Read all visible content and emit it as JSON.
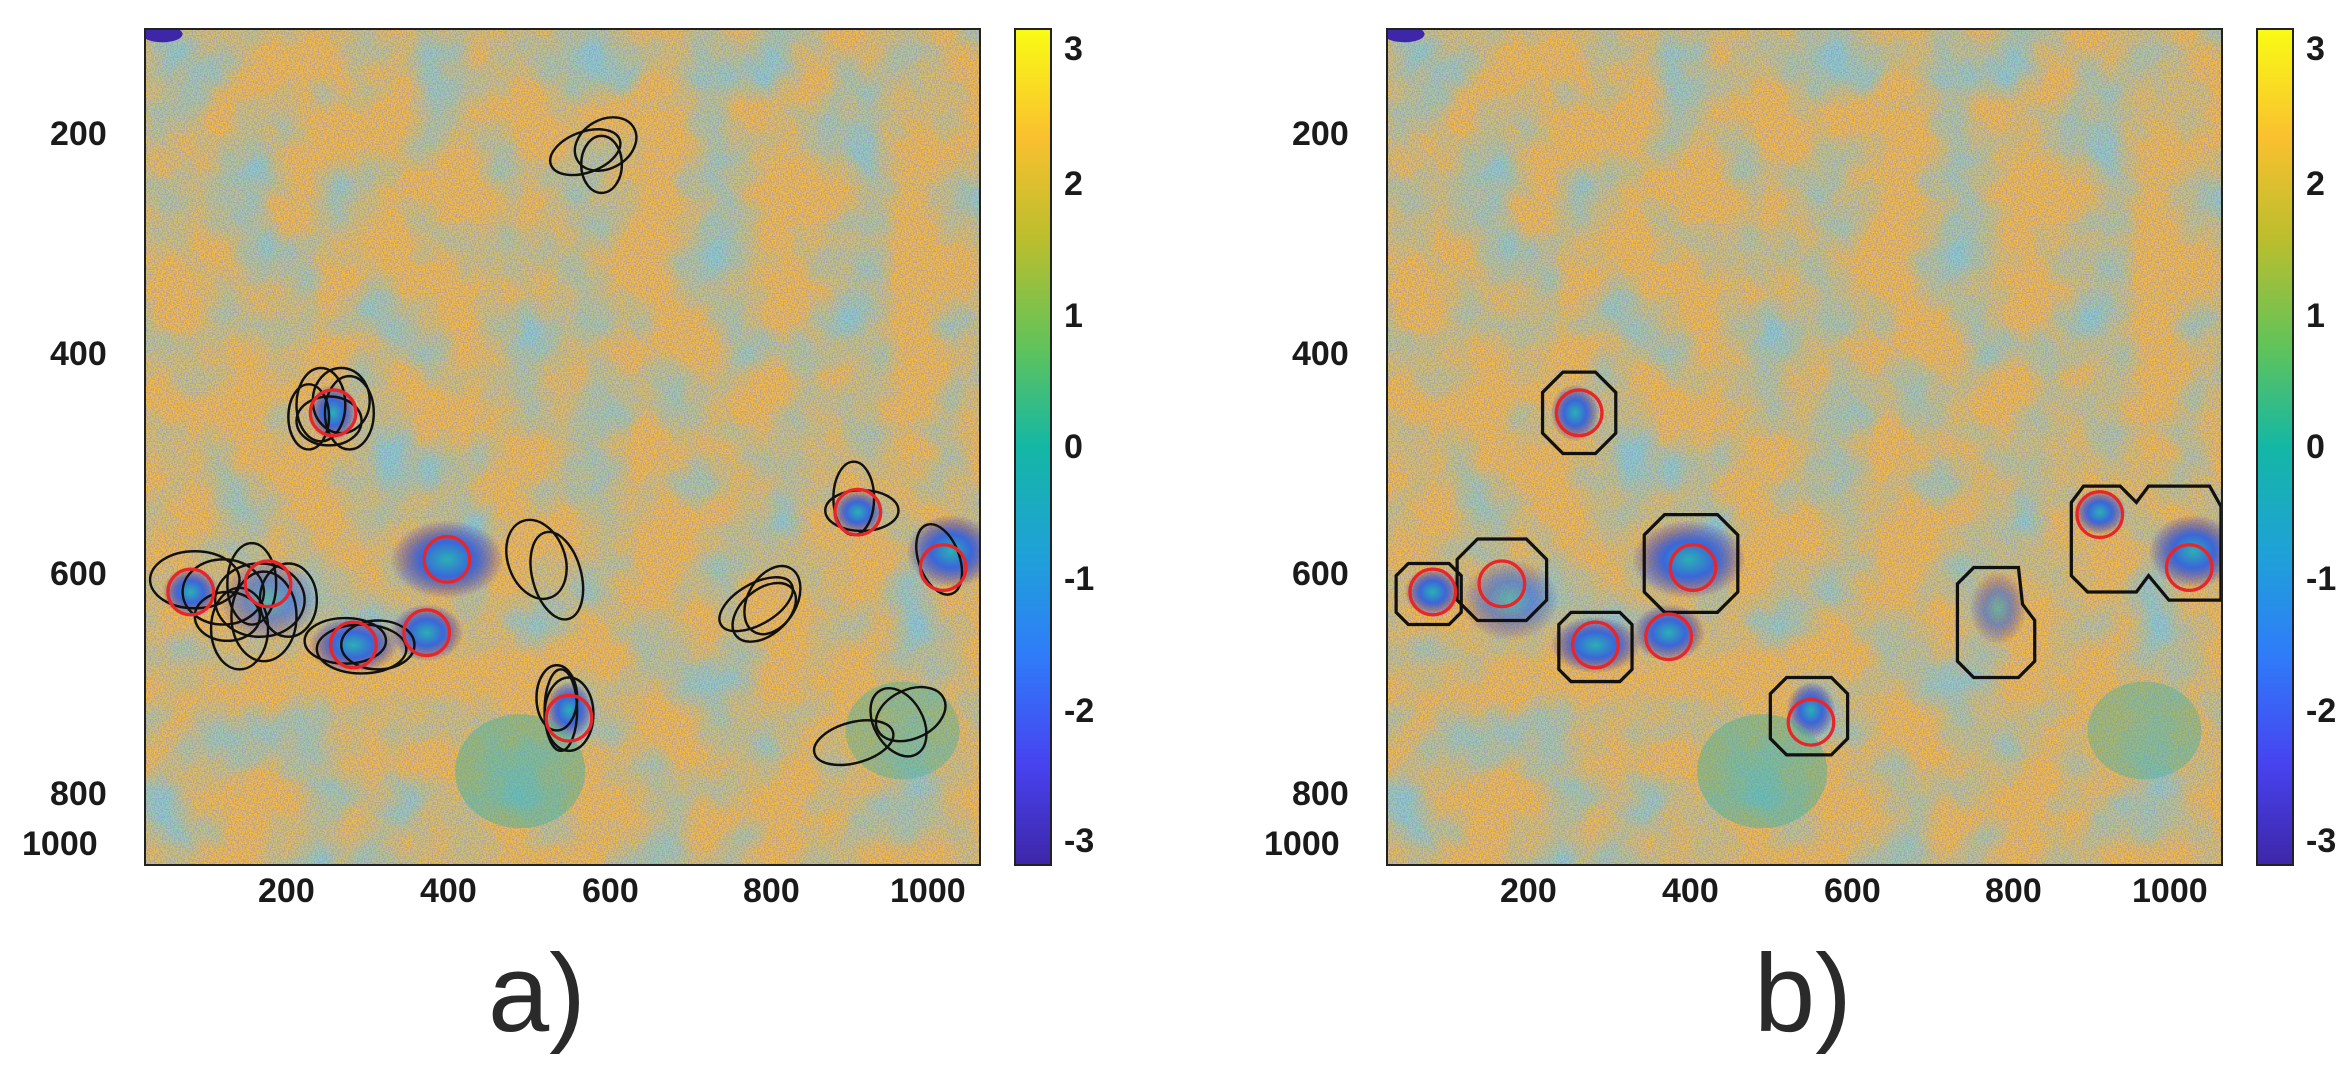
{
  "figure": {
    "yticks": [
      "200",
      "400",
      "600",
      "800",
      "1000"
    ],
    "xticks": [
      "200",
      "400",
      "600",
      "800",
      "1000"
    ],
    "colorbar_ticks": [
      "3",
      "2",
      "1",
      "0",
      "-1",
      "-2",
      "-3"
    ],
    "colorbar_range": [
      -3.14,
      3.14
    ],
    "colormap": "parula",
    "colors": {
      "background_field": "#f2b63a",
      "low_values": "#3e26a8",
      "mid_values": "#2aa4b3",
      "red_markers": "#e8262a",
      "black_outlines": "#111111"
    }
  },
  "panels": [
    {
      "label": "a)",
      "outline_type": "ellipses"
    },
    {
      "label": "b)",
      "outline_type": "octagons"
    }
  ]
}
